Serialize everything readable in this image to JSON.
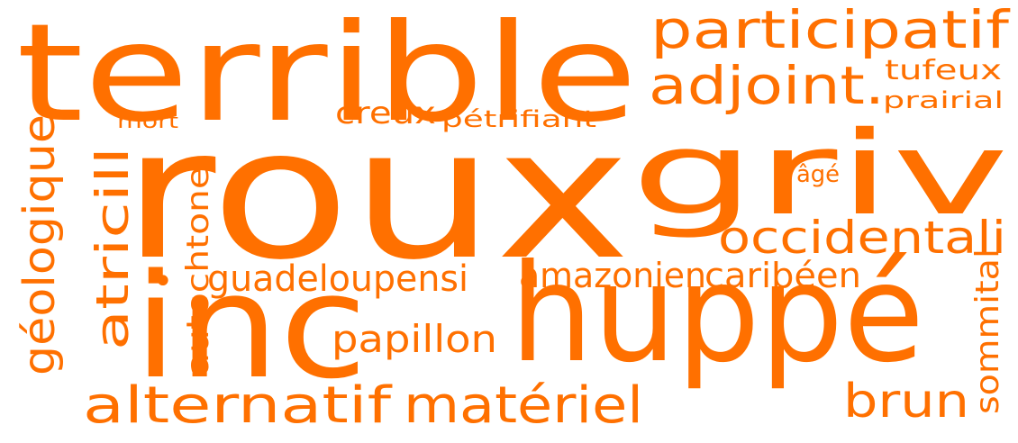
{
  "accent_color": "#ff7000",
  "words": {
    "terrible": "terrible",
    "participatif": "participatif",
    "adjoint": "adjoint.",
    "tufeux": "tufeux",
    "prairial": "prairial",
    "mort": "mort",
    "creux": "creux",
    "petrifiant": "pétrifiant",
    "roux": "roux",
    "griv": "griv",
    "age": "âgé",
    "geologique": "géologique",
    "atricill": "atricill",
    "autochtone": "autochtone",
    "occidentali": "occidentali",
    "dot": "•",
    "guadeloupensi": "guadeloupensi",
    "amazonien": "amazonien",
    "caribeen": "caribéen",
    "sommital": "sommital",
    "inc": "inc",
    "huppe": "huppé",
    "papillon": "papillon",
    "alternatif": "alternatif",
    "materiel": "matériel",
    "brun": "brun"
  }
}
